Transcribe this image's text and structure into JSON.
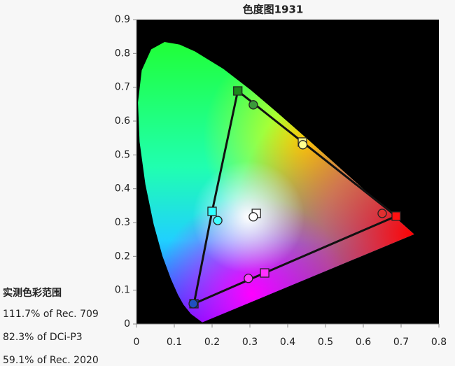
{
  "chart_data": {
    "type": "scatter",
    "title": "色度图1931",
    "xlim": [
      0,
      0.8
    ],
    "ylim": [
      0,
      0.9
    ],
    "xticks": [
      0,
      0.1,
      0.2,
      0.3,
      0.4,
      0.5,
      0.6,
      0.7,
      0.8
    ],
    "yticks": [
      0,
      0.1,
      0.2,
      0.3,
      0.4,
      0.5,
      0.6,
      0.7,
      0.8,
      0.9
    ],
    "series": [
      {
        "marker": "square",
        "x": [
          0.687,
          0.268,
          0.152,
          0.317,
          0.2,
          0.339,
          0.439
        ],
        "y": [
          0.319,
          0.689,
          0.06,
          0.327,
          0.333,
          0.151,
          0.538
        ],
        "colors": [
          "#ff1010",
          "#1a8a1a",
          "#1040c0",
          "#ffffff",
          "#30ffff",
          "#ff30ff",
          "#ffff90"
        ]
      },
      {
        "marker": "circle",
        "x": [
          0.65,
          0.309,
          0.15,
          0.309,
          0.215,
          0.296,
          0.44
        ],
        "y": [
          0.327,
          0.648,
          0.06,
          0.317,
          0.306,
          0.135,
          0.53
        ],
        "colors": [
          "#e03030",
          "#3a9a3a",
          "#2050c0",
          "#ffffff",
          "#40ffff",
          "#ff40ff",
          "#ffff90"
        ]
      }
    ]
  },
  "summary": {
    "heading": "实测色彩范围",
    "lines": [
      "111.7% of Rec. 709",
      "82.3% of DCi-P3",
      "59.1% of Rec. 2020"
    ]
  }
}
